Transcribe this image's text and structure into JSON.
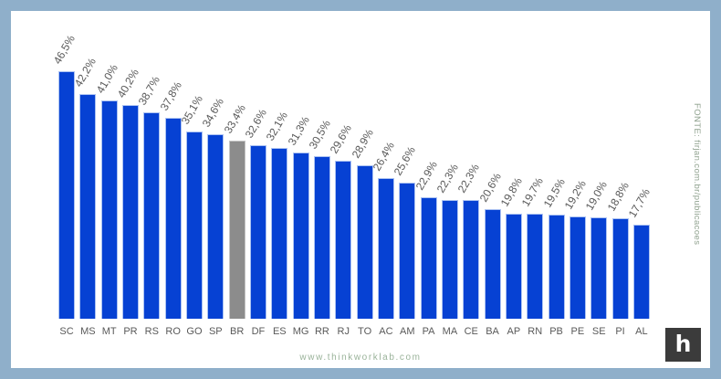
{
  "chart_data": {
    "type": "bar",
    "categories": [
      "SC",
      "MS",
      "MT",
      "PR",
      "RS",
      "RO",
      "GO",
      "SP",
      "BR",
      "DF",
      "ES",
      "MG",
      "RR",
      "RJ",
      "TO",
      "AC",
      "AM",
      "PA",
      "MA",
      "CE",
      "BA",
      "AP",
      "RN",
      "PB",
      "PE",
      "SE",
      "PI",
      "AL"
    ],
    "values": [
      46.5,
      42.2,
      41.0,
      40.2,
      38.7,
      37.8,
      35.1,
      34.6,
      33.4,
      32.6,
      32.1,
      31.3,
      30.5,
      29.6,
      28.9,
      26.4,
      25.6,
      22.9,
      22.3,
      22.3,
      20.6,
      19.8,
      19.7,
      19.5,
      19.2,
      19.0,
      18.8,
      17.7
    ],
    "value_labels": [
      "46,5%",
      "42,2%",
      "41,0%",
      "40,2%",
      "38,7%",
      "37,8%",
      "35,1%",
      "34,6%",
      "33,4%",
      "32,6%",
      "32,1%",
      "31,3%",
      "30,5%",
      "29,6%",
      "28,9%",
      "26,4%",
      "25,6%",
      "22,9%",
      "22,3%",
      "22,3%",
      "20,6%",
      "19,8%",
      "19,7%",
      "19,5%",
      "19,2%",
      "19,0%",
      "18,8%",
      "17,7%"
    ],
    "highlight_category": "BR",
    "title": "",
    "xlabel": "",
    "ylabel": "",
    "ylim": [
      0,
      46.5
    ],
    "grid": false,
    "legend": false,
    "bar_color": "#0641d3",
    "highlight_color": "#8c8c8c",
    "highlight_border_color": "#c4c4c4"
  },
  "source_note": "FONTE: firjan.com.br/publicacoes",
  "footer": {
    "website": "www.thinkworklab.com"
  },
  "logo": {
    "letter": "h"
  },
  "colors": {
    "frame": "#8fafca",
    "value_label": "#595959",
    "category_label": "#595959",
    "source_note": "#90a28f",
    "website": "#9ab39a",
    "logo_bg": "#3b3b3b"
  }
}
